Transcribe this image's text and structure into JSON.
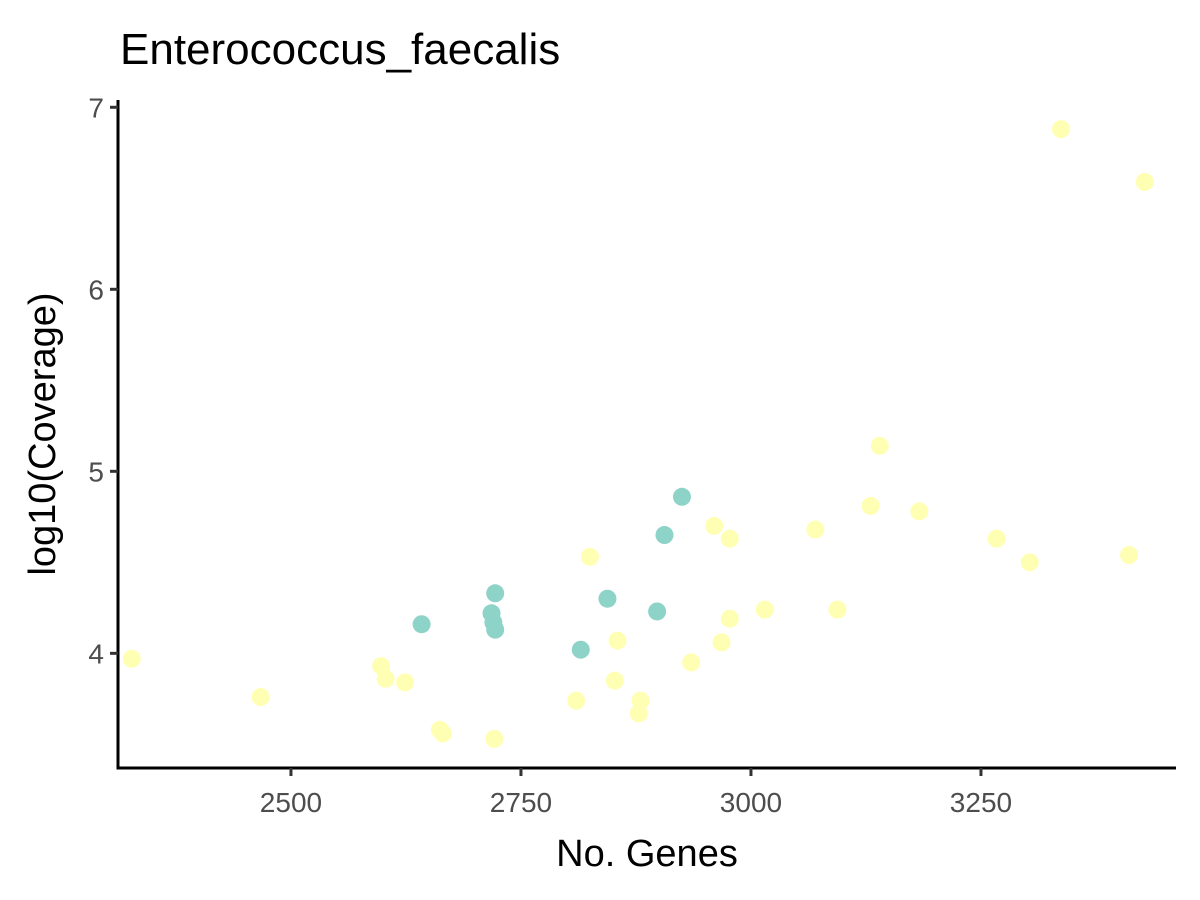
{
  "chart_data": {
    "type": "scatter",
    "title": "Enterococcus_faecalis",
    "xlabel": "No. Genes",
    "ylabel": "log10(Coverage)",
    "xlim": [
      2312,
      3462
    ],
    "ylim": [
      3.37,
      7.04
    ],
    "xticks": [
      2500,
      2750,
      3000,
      3250
    ],
    "yticks": [
      4,
      5,
      6,
      7
    ],
    "grid": false,
    "legend": "none",
    "colors": {
      "group_a": "#8DD3C7",
      "group_b": "#FFFFB3"
    },
    "series": [
      {
        "color": "#FFFFB3",
        "points": [
          {
            "x": 2327,
            "y": 3.97
          },
          {
            "x": 2467,
            "y": 3.76
          },
          {
            "x": 2598,
            "y": 3.93
          },
          {
            "x": 2603,
            "y": 3.86
          },
          {
            "x": 2624,
            "y": 3.84
          },
          {
            "x": 2662,
            "y": 3.58
          },
          {
            "x": 2665,
            "y": 3.56
          },
          {
            "x": 2721,
            "y": 3.53
          },
          {
            "x": 2810,
            "y": 3.74
          },
          {
            "x": 2825,
            "y": 4.53
          },
          {
            "x": 2852,
            "y": 3.85
          },
          {
            "x": 2855,
            "y": 4.07
          },
          {
            "x": 2878,
            "y": 3.67
          },
          {
            "x": 2880,
            "y": 3.74
          },
          {
            "x": 2935,
            "y": 3.95
          },
          {
            "x": 2960,
            "y": 4.7
          },
          {
            "x": 2968,
            "y": 4.06
          },
          {
            "x": 2977,
            "y": 4.19
          },
          {
            "x": 2977,
            "y": 4.63
          },
          {
            "x": 3015,
            "y": 4.24
          },
          {
            "x": 3070,
            "y": 4.68
          },
          {
            "x": 3094,
            "y": 4.24
          },
          {
            "x": 3130,
            "y": 4.81
          },
          {
            "x": 3140,
            "y": 5.14
          },
          {
            "x": 3183,
            "y": 4.78
          },
          {
            "x": 3267,
            "y": 4.63
          },
          {
            "x": 3303,
            "y": 4.5
          },
          {
            "x": 3337,
            "y": 6.88
          },
          {
            "x": 3411,
            "y": 4.54
          },
          {
            "x": 3428,
            "y": 6.59
          }
        ]
      },
      {
        "color": "#8DD3C7",
        "points": [
          {
            "x": 2642,
            "y": 4.16
          },
          {
            "x": 2718,
            "y": 4.22
          },
          {
            "x": 2720,
            "y": 4.17
          },
          {
            "x": 2722,
            "y": 4.33
          },
          {
            "x": 2722,
            "y": 4.13
          },
          {
            "x": 2815,
            "y": 4.02
          },
          {
            "x": 2844,
            "y": 4.3
          },
          {
            "x": 2898,
            "y": 4.23
          },
          {
            "x": 2906,
            "y": 4.65
          },
          {
            "x": 2925,
            "y": 4.86
          }
        ]
      }
    ]
  }
}
